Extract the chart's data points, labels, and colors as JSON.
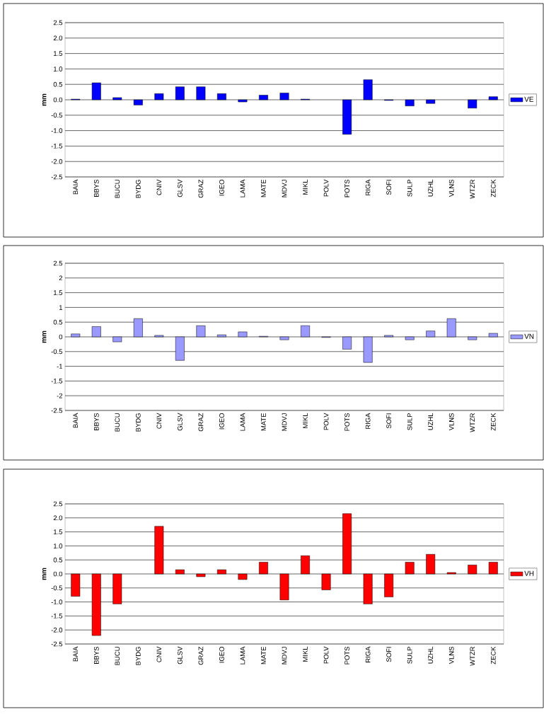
{
  "chart_data": [
    {
      "type": "bar",
      "ylabel": "mm",
      "categories": [
        "BAIA",
        "BBYS",
        "BUCU",
        "BYDG",
        "CNIV",
        "GLSV",
        "GRAZ",
        "IGEO",
        "LAMA",
        "MATE",
        "MDVJ",
        "MIKL",
        "POLV",
        "POTS",
        "RIGA",
        "SOFI",
        "SULP",
        "UZHL",
        "VLNS",
        "WTZR",
        "ZECK"
      ],
      "series": [
        {
          "name": "VE",
          "color": "#0000ff",
          "values": [
            0.02,
            0.55,
            0.07,
            -0.17,
            0.2,
            0.42,
            0.42,
            0.2,
            -0.07,
            0.15,
            0.22,
            0.02,
            null,
            -1.12,
            0.65,
            -0.02,
            -0.2,
            -0.12,
            null,
            -0.27,
            0.1
          ]
        }
      ],
      "ylim": [
        -2.5,
        2.5
      ],
      "yticks": [
        -2.5,
        {
          "value": -2.0,
          "label": "-2.0"
        },
        -1.5,
        {
          "value": -1.0,
          "label": "-1.0"
        },
        -0.5,
        {
          "value": 0,
          "label": "0.0"
        },
        0.5,
        {
          "value": 1.0,
          "label": "1.0"
        },
        1.5,
        {
          "value": 2.0,
          "label": "2.0"
        },
        2.5
      ],
      "grid": "y",
      "legend": "right"
    },
    {
      "type": "bar",
      "ylabel": "mm",
      "categories": [
        "BAIA",
        "BBYS",
        "BUCU",
        "BYDG",
        "CNIV",
        "GLSV",
        "GRAZ",
        "IGEO",
        "LAMA",
        "MATE",
        "MDVJ",
        "MIKL",
        "POLV",
        "POTS",
        "RIGA",
        "SOFI",
        "SULP",
        "UZHL",
        "VLNS",
        "WTZR",
        "ZECK"
      ],
      "series": [
        {
          "name": "VN",
          "color": "#9999ff",
          "values": [
            0.1,
            0.35,
            -0.17,
            0.62,
            0.05,
            -0.8,
            0.38,
            0.07,
            0.17,
            0.02,
            -0.1,
            0.38,
            -0.02,
            -0.42,
            -0.87,
            0.05,
            -0.1,
            0.2,
            0.62,
            -0.1,
            0.12
          ]
        }
      ],
      "ylim": [
        -2.5,
        2.5
      ],
      "yticks": [
        -2.5,
        -2,
        -1.5,
        -1,
        -0.5,
        0,
        0.5,
        1,
        1.5,
        2,
        2.5
      ],
      "grid": "y",
      "legend": "right"
    },
    {
      "type": "bar",
      "ylabel": "mm",
      "categories": [
        "BAIA",
        "BBYS",
        "BUCU",
        "BYDG",
        "CNIV",
        "GLSV",
        "GRAZ",
        "IGEO",
        "LAMA",
        "MATE",
        "MDVJ",
        "MIKL",
        "POLV",
        "POTS",
        "RIGA",
        "SOFI",
        "SULP",
        "UZHL",
        "VLNS",
        "WTZR",
        "ZECK"
      ],
      "series": [
        {
          "name": "VH",
          "color": "#ff0000",
          "values": [
            -0.8,
            -2.2,
            -1.07,
            null,
            1.7,
            0.15,
            -0.1,
            0.15,
            -0.2,
            0.42,
            -0.93,
            0.65,
            -0.57,
            2.15,
            -1.07,
            -0.82,
            0.42,
            0.7,
            0.05,
            0.32,
            0.42
          ]
        }
      ],
      "ylim": [
        -2.5,
        2.5
      ],
      "yticks": [
        -2.5,
        {
          "value": -2.0,
          "label": "-2.0"
        },
        -1.5,
        {
          "value": -1.0,
          "label": "-1.0"
        },
        -0.5,
        {
          "value": 0,
          "label": "0.0"
        },
        0.5,
        {
          "value": 1.0,
          "label": "1.0"
        },
        1.5,
        {
          "value": 2.0,
          "label": "2.0"
        },
        2.5
      ],
      "grid": "y",
      "legend": "right"
    }
  ]
}
